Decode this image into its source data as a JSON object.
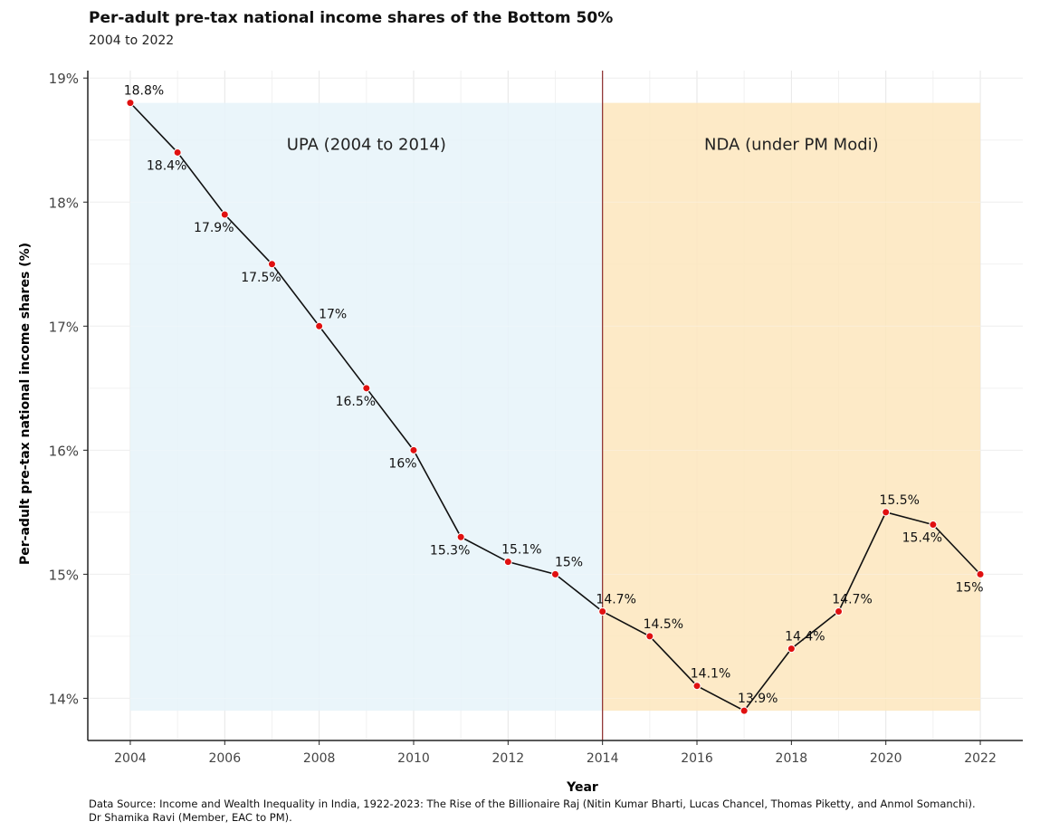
{
  "header": {
    "title": "Per-adult pre-tax national income shares of the Bottom 50%",
    "subtitle": "2004 to 2022"
  },
  "footer": {
    "source_line1": "Data Source: Income and Wealth Inequality in India, 1922-2023: The Rise of the Billionaire Raj (Nitin Kumar Bharti, Lucas Chancel, Thomas Piketty, and Anmol Somanchi).",
    "source_line2": "Dr Shamika Ravi (Member, EAC to PM)."
  },
  "colors": {
    "upa_band": "#e6f3f9",
    "nda_band": "#fde6bd",
    "line": "#111111",
    "point": "#e01010",
    "divider": "#8b2a2a",
    "grid": "#e6e6e6",
    "axis": "#222222"
  },
  "chart_data": {
    "type": "line",
    "title": "Per-adult pre-tax national income shares of the Bottom 50%",
    "subtitle": "2004 to 2022",
    "xlabel": "Year",
    "ylabel": "Per-adult pre-tax national income shares (%)",
    "xlim": [
      2003.1,
      2022.9
    ],
    "ylim": [
      13.66,
      19.06
    ],
    "x_ticks": [
      2004,
      2006,
      2008,
      2010,
      2012,
      2014,
      2016,
      2018,
      2020,
      2022
    ],
    "y_ticks": [
      14,
      15,
      16,
      17,
      18,
      19
    ],
    "y_tick_labels": [
      "14%",
      "15%",
      "16%",
      "17%",
      "18%",
      "19%"
    ],
    "grid": true,
    "series": [
      {
        "name": "Bottom 50% income share",
        "x": [
          2004,
          2005,
          2006,
          2007,
          2008,
          2009,
          2010,
          2011,
          2012,
          2013,
          2014,
          2015,
          2016,
          2017,
          2018,
          2019,
          2020,
          2021,
          2022
        ],
        "values": [
          18.8,
          18.4,
          17.9,
          17.5,
          17.0,
          16.5,
          16.0,
          15.3,
          15.1,
          15.0,
          14.7,
          14.5,
          14.1,
          13.9,
          14.4,
          14.7,
          15.5,
          15.4,
          15.0
        ],
        "labels": [
          "18.8%",
          "18.4%",
          "17.9%",
          "17.5%",
          "17%",
          "16.5%",
          "16%",
          "15.3%",
          "15.1%",
          "15%",
          "14.7%",
          "14.5%",
          "14.1%",
          "13.9%",
          "14.4%",
          "14.7%",
          "15.5%",
          "15.4%",
          "15%"
        ],
        "label_pos": [
          "above",
          "below",
          "below",
          "below",
          "above",
          "below",
          "below",
          "below",
          "above",
          "above",
          "above",
          "above",
          "above",
          "above",
          "above",
          "above",
          "above",
          "below",
          "below"
        ]
      }
    ],
    "regions": [
      {
        "label": "UPA (2004 to 2014)",
        "x0": 2004,
        "x1": 2014,
        "y0": 13.9,
        "y1": 18.8,
        "color": "#e6f3f9"
      },
      {
        "label": "NDA (under PM Modi)",
        "x0": 2014,
        "x1": 2022,
        "y0": 13.9,
        "y1": 18.8,
        "color": "#fde6bd"
      }
    ],
    "vline": 2014
  }
}
